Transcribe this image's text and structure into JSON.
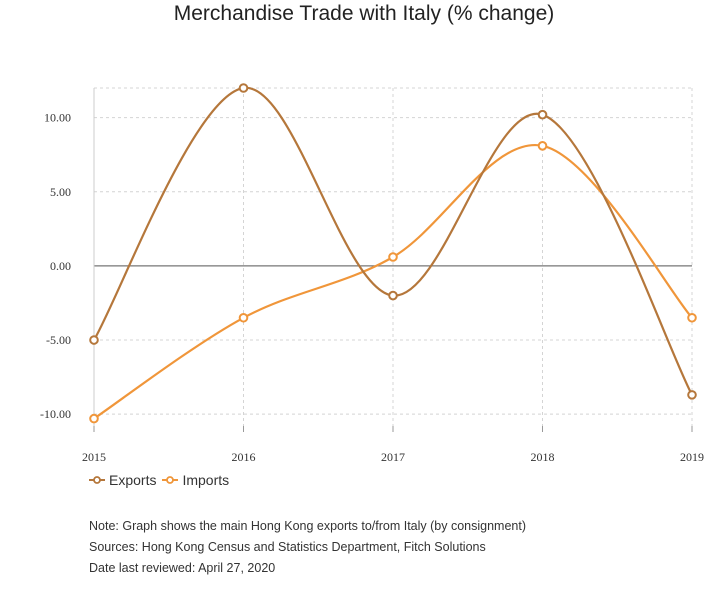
{
  "chart_data": {
    "type": "line",
    "title": "Merchandise Trade with Italy (% change)",
    "xlabel": "",
    "ylabel": "",
    "categories": [
      "2015",
      "2016",
      "2017",
      "2018",
      "2019"
    ],
    "ylim": [
      -10.5,
      12.0
    ],
    "yticks": [
      -10,
      -5,
      0,
      5,
      10
    ],
    "ytick_labels": [
      "-10.00",
      "-5.00",
      "0.00",
      "5.00",
      "10.00"
    ],
    "grid": true,
    "legend_position": "bottom-left",
    "series": [
      {
        "name": "Exports",
        "color": "#b5773b",
        "values": [
          -5.0,
          12.0,
          -2.0,
          10.2,
          -8.7
        ]
      },
      {
        "name": "Imports",
        "color": "#f0963a",
        "values": [
          -10.3,
          -3.5,
          0.6,
          8.1,
          -3.5
        ]
      }
    ]
  },
  "notes": [
    "Note: Graph shows the main Hong Kong exports to/from Italy (by consignment)",
    "Sources: Hong Kong Census and Statistics Department, Fitch Solutions",
    "Date last reviewed: April 27, 2020"
  ]
}
